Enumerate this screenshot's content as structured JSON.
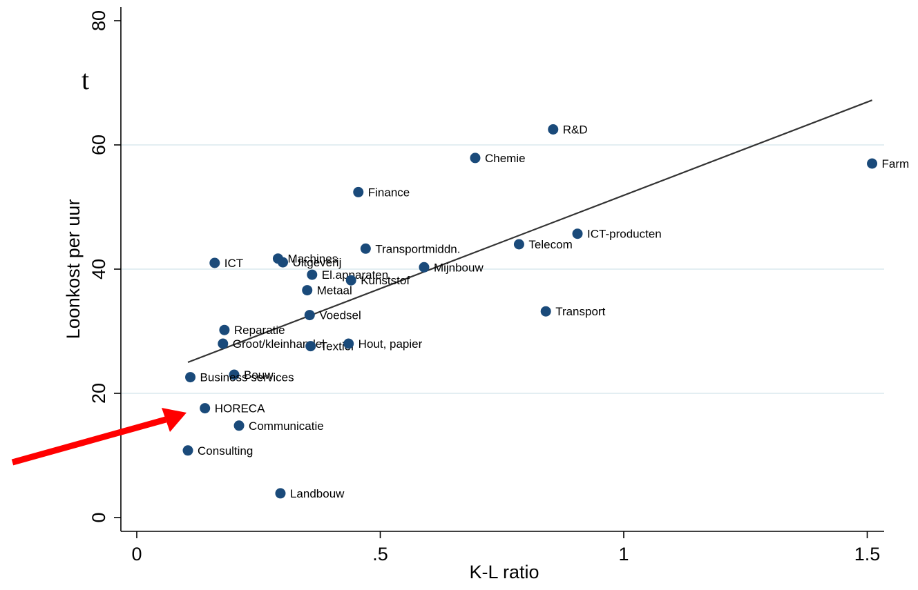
{
  "cut_off_text": "t",
  "chart_data": {
    "type": "scatter",
    "title": "",
    "xlabel": "K-L ratio",
    "ylabel": "Loonkost per uur",
    "xlim": [
      0,
      1.55
    ],
    "ylim": [
      0,
      82
    ],
    "xticks": [
      {
        "value": 0,
        "label": "0"
      },
      {
        "value": 0.5,
        "label": ".5"
      },
      {
        "value": 1,
        "label": "1"
      },
      {
        "value": 1.5,
        "label": "1.5"
      }
    ],
    "yticks": [
      {
        "value": 0,
        "label": "0"
      },
      {
        "value": 20,
        "label": "20"
      },
      {
        "value": 40,
        "label": "40"
      },
      {
        "value": 60,
        "label": "60"
      },
      {
        "value": 80,
        "label": "80"
      }
    ],
    "grid": "horizontal",
    "marker_color": "#1a4a7a",
    "points": [
      {
        "label": "R&D",
        "x": 0.855,
        "y": 62.5
      },
      {
        "label": "Chemie",
        "x": 0.695,
        "y": 57.9
      },
      {
        "label": "Farm",
        "x": 1.51,
        "y": 57.0
      },
      {
        "label": "Finance",
        "x": 0.455,
        "y": 52.4
      },
      {
        "label": "ICT-producten",
        "x": 0.905,
        "y": 45.7
      },
      {
        "label": "Telecom",
        "x": 0.785,
        "y": 44.0
      },
      {
        "label": "Transportmiddn.",
        "x": 0.47,
        "y": 43.3
      },
      {
        "label": "Machines",
        "x": 0.29,
        "y": 41.7
      },
      {
        "label": "Uitgeverij",
        "x": 0.3,
        "y": 41.1
      },
      {
        "label": "ICT",
        "x": 0.16,
        "y": 41.0
      },
      {
        "label": "Mijnbouw",
        "x": 0.59,
        "y": 40.3
      },
      {
        "label": "El.apparaten",
        "x": 0.36,
        "y": 39.1
      },
      {
        "label": "Kunststof",
        "x": 0.44,
        "y": 38.2
      },
      {
        "label": "Metaal",
        "x": 0.35,
        "y": 36.6
      },
      {
        "label": "Transport",
        "x": 0.84,
        "y": 33.2
      },
      {
        "label": "Voedsel",
        "x": 0.355,
        "y": 32.6
      },
      {
        "label": "Reparatie",
        "x": 0.18,
        "y": 30.2
      },
      {
        "label": "Groot/kleinhandel",
        "x": 0.177,
        "y": 28.0
      },
      {
        "label": "Textiel",
        "x": 0.357,
        "y": 27.6
      },
      {
        "label": "Hout, papier",
        "x": 0.435,
        "y": 28.0
      },
      {
        "label": "Bouw",
        "x": 0.2,
        "y": 23.0
      },
      {
        "label": "Business services",
        "x": 0.11,
        "y": 22.6
      },
      {
        "label": "HORECA",
        "x": 0.14,
        "y": 17.6
      },
      {
        "label": "Communicatie",
        "x": 0.21,
        "y": 14.8
      },
      {
        "label": "Consulting",
        "x": 0.105,
        "y": 10.8
      },
      {
        "label": "Landbouw",
        "x": 0.295,
        "y": 3.9
      }
    ],
    "fit_line": {
      "x": [
        0.105,
        1.51
      ],
      "y": [
        25.0,
        67.2
      ],
      "color": "#333333"
    },
    "annotation_arrow": {
      "color": "#ff0000",
      "points_to": "HORECA"
    }
  }
}
